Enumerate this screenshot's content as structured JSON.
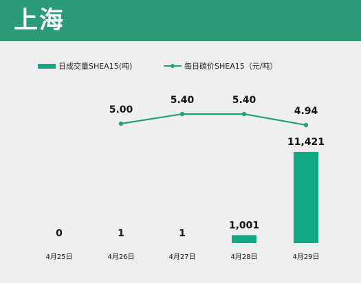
{
  "header": {
    "title": "上海"
  },
  "colors": {
    "header_bg": "#2b9a78",
    "bar": "#13a884",
    "line": "#22a07d"
  },
  "legend": {
    "bar_label": "日成交量SHEA15(吨)",
    "line_label": "每日碳价SHEA15（元/吨）"
  },
  "chart_data": {
    "type": "bar+line",
    "title": "上海",
    "categories": [
      "4月25日",
      "4月26日",
      "4月27日",
      "4月28日",
      "4月29日"
    ],
    "series": [
      {
        "name": "日成交量SHEA15(吨)",
        "type": "bar",
        "values": [
          0,
          1,
          1,
          1001,
          11421
        ],
        "value_labels": [
          "0",
          "1",
          "1",
          "1,001",
          "11,421"
        ]
      },
      {
        "name": "每日碳价SHEA15（元/吨）",
        "type": "line",
        "values": [
          null,
          5.0,
          5.4,
          5.4,
          4.94
        ],
        "value_labels": [
          "",
          "5.00",
          "5.40",
          "5.40",
          "4.94"
        ]
      }
    ],
    "legend_position": "top-left",
    "grid": false
  }
}
